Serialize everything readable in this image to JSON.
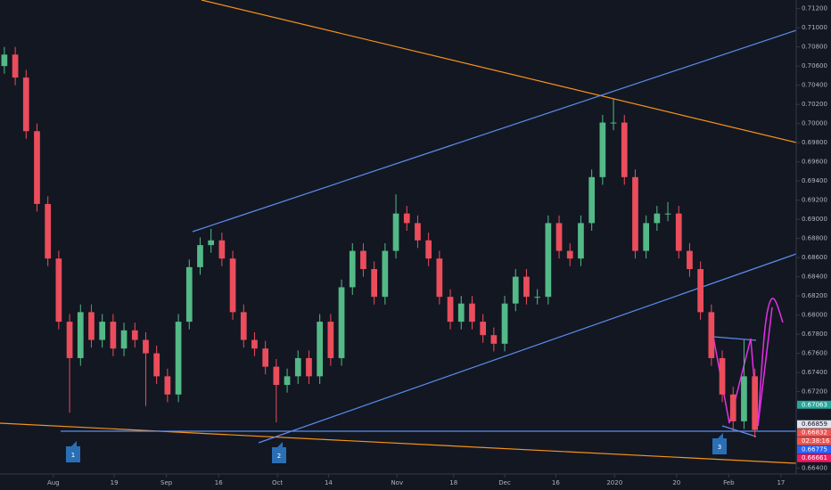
{
  "chart_data": {
    "type": "candlestick",
    "open": [
      0.706,
      0.7072,
      0.7048,
      0.6992,
      0.6916,
      0.6859,
      0.6793,
      0.6755,
      0.6803,
      0.6774,
      0.6793,
      0.6765,
      0.6784,
      0.6774,
      0.676,
      0.6736,
      0.6717,
      0.6793,
      0.685,
      0.6873,
      0.6878,
      0.6859,
      0.6803,
      0.6774,
      0.6765,
      0.6746,
      0.6727,
      0.6736,
      0.6755,
      0.6736,
      0.6793,
      0.6755,
      0.6829,
      0.6867,
      0.6848,
      0.6819,
      0.6867,
      0.6906,
      0.6896,
      0.6878,
      0.6859,
      0.6819,
      0.6793,
      0.6812,
      0.6793,
      0.6779,
      0.677,
      0.6812,
      0.684,
      0.6819,
      0.6819,
      0.6896,
      0.6867,
      0.6859,
      0.6896,
      0.6944,
      0.7001,
      0.7001,
      0.6944,
      0.6867,
      0.6896,
      0.6906,
      0.6906,
      0.6867,
      0.6848,
      0.6803,
      0.6755,
      0.6717,
      0.6689,
      0.6736
    ],
    "high": [
      0.708,
      0.708,
      0.7056,
      0.7,
      0.6924,
      0.6867,
      0.6801,
      0.6811,
      0.6811,
      0.6801,
      0.6801,
      0.6792,
      0.6792,
      0.6782,
      0.6768,
      0.6744,
      0.6801,
      0.6858,
      0.6881,
      0.689,
      0.6886,
      0.6867,
      0.6811,
      0.6782,
      0.6773,
      0.6754,
      0.6744,
      0.6763,
      0.6763,
      0.6801,
      0.6801,
      0.6837,
      0.6875,
      0.6875,
      0.6856,
      0.6875,
      0.6926,
      0.6914,
      0.6904,
      0.6886,
      0.6867,
      0.6827,
      0.682,
      0.682,
      0.6801,
      0.6787,
      0.682,
      0.6848,
      0.6848,
      0.6827,
      0.6904,
      0.6904,
      0.6875,
      0.6904,
      0.6952,
      0.7009,
      0.7026,
      0.7009,
      0.6952,
      0.6904,
      0.6914,
      0.6918,
      0.6914,
      0.6875,
      0.6856,
      0.6811,
      0.6763,
      0.6725,
      0.6774,
      0.6744
    ],
    "low": [
      0.7052,
      0.704,
      0.6984,
      0.6908,
      0.6851,
      0.6785,
      0.6698,
      0.6747,
      0.6766,
      0.6766,
      0.6757,
      0.6757,
      0.6766,
      0.6705,
      0.6728,
      0.6709,
      0.6709,
      0.6785,
      0.6842,
      0.6865,
      0.6851,
      0.6795,
      0.6766,
      0.6757,
      0.6738,
      0.6688,
      0.6719,
      0.6728,
      0.6728,
      0.6728,
      0.6747,
      0.6747,
      0.6821,
      0.684,
      0.6811,
      0.6811,
      0.6859,
      0.6888,
      0.687,
      0.6851,
      0.6811,
      0.6785,
      0.6785,
      0.6785,
      0.6771,
      0.6762,
      0.6762,
      0.6804,
      0.6811,
      0.6811,
      0.6811,
      0.6859,
      0.6851,
      0.6851,
      0.6888,
      0.6936,
      0.6993,
      0.6936,
      0.6859,
      0.6859,
      0.6888,
      0.6898,
      0.6859,
      0.684,
      0.6795,
      0.6747,
      0.6709,
      0.6679,
      0.6681,
      0.6672
    ],
    "close": [
      0.7072,
      0.7048,
      0.6992,
      0.6916,
      0.6859,
      0.6793,
      0.6755,
      0.6803,
      0.6774,
      0.6793,
      0.6765,
      0.6784,
      0.6774,
      0.676,
      0.6736,
      0.6717,
      0.6793,
      0.685,
      0.6873,
      0.6878,
      0.6859,
      0.6803,
      0.6774,
      0.6765,
      0.6746,
      0.6727,
      0.6736,
      0.6755,
      0.6736,
      0.6793,
      0.6755,
      0.6829,
      0.6867,
      0.6848,
      0.6819,
      0.6867,
      0.6906,
      0.6896,
      0.6878,
      0.6859,
      0.6819,
      0.6793,
      0.6812,
      0.6793,
      0.6779,
      0.677,
      0.6812,
      0.684,
      0.6819,
      0.6819,
      0.6896,
      0.6867,
      0.6859,
      0.6896,
      0.6944,
      0.7001,
      0.7001,
      0.6944,
      0.6867,
      0.6896,
      0.6906,
      0.6906,
      0.6867,
      0.6848,
      0.6803,
      0.6755,
      0.6717,
      0.6689,
      0.6736,
      0.668
    ],
    "up_color": "#53b987",
    "down_color": "#eb4d5c",
    "xlim": [
      -0.4,
      72.8
    ],
    "xticks": [
      {
        "value": 4.5,
        "label": "Aug"
      },
      {
        "value": 10.1,
        "label": "19"
      },
      {
        "value": 14.9,
        "label": "Sep"
      },
      {
        "value": 19.7,
        "label": "16"
      },
      {
        "value": 25.1,
        "label": "Oct"
      },
      {
        "value": 29.8,
        "label": "14"
      },
      {
        "value": 36.1,
        "label": "Nov"
      },
      {
        "value": 41.3,
        "label": "18"
      },
      {
        "value": 46,
        "label": "Dec"
      },
      {
        "value": 50.7,
        "label": "16"
      },
      {
        "value": 56.1,
        "label": "2020"
      },
      {
        "value": 61.8,
        "label": "20"
      },
      {
        "value": 66.6,
        "label": "Feb"
      },
      {
        "value": 71.4,
        "label": "17"
      }
    ],
    "ylim": [
      0.6634,
      0.7129
    ],
    "yticks": [
      {
        "value": 0.712,
        "label": "0.71200"
      },
      {
        "value": 0.71,
        "label": "0.71000"
      },
      {
        "value": 0.708,
        "label": "0.70800"
      },
      {
        "value": 0.706,
        "label": "0.70600"
      },
      {
        "value": 0.704,
        "label": "0.70400"
      },
      {
        "value": 0.702,
        "label": "0.70200"
      },
      {
        "value": 0.7,
        "label": "0.70000"
      },
      {
        "value": 0.698,
        "label": "0.69800"
      },
      {
        "value": 0.696,
        "label": "0.69600"
      },
      {
        "value": 0.694,
        "label": "0.69400"
      },
      {
        "value": 0.692,
        "label": "0.69200"
      },
      {
        "value": 0.69,
        "label": "0.69000"
      },
      {
        "value": 0.688,
        "label": "0.68800"
      },
      {
        "value": 0.686,
        "label": "0.68600"
      },
      {
        "value": 0.684,
        "label": "0.68400"
      },
      {
        "value": 0.682,
        "label": "0.68200"
      },
      {
        "value": 0.68,
        "label": "0.68000"
      },
      {
        "value": 0.678,
        "label": "0.67800"
      },
      {
        "value": 0.676,
        "label": "0.67600"
      },
      {
        "value": 0.674,
        "label": "0.67400"
      },
      {
        "value": 0.672,
        "label": "0.67200"
      },
      {
        "value": 0.664,
        "label": "0.66400"
      }
    ],
    "price_labels": [
      {
        "value": 0.67063,
        "label": "0.67063",
        "color": "#26a69a"
      },
      {
        "value": 0.66859,
        "label": "0.66859",
        "color": "#e0e3eb"
      },
      {
        "value": 0.66832,
        "label": "0.66832",
        "color": "#ef5350"
      },
      {
        "value": 0.66775,
        "label": "0.66775",
        "color": "#2962ff"
      },
      {
        "value": 0.66661,
        "label": "0.66661",
        "color": "#e91e63"
      }
    ],
    "countdown": "02:38:16",
    "markers": [
      "1",
      "2",
      "3"
    ]
  }
}
